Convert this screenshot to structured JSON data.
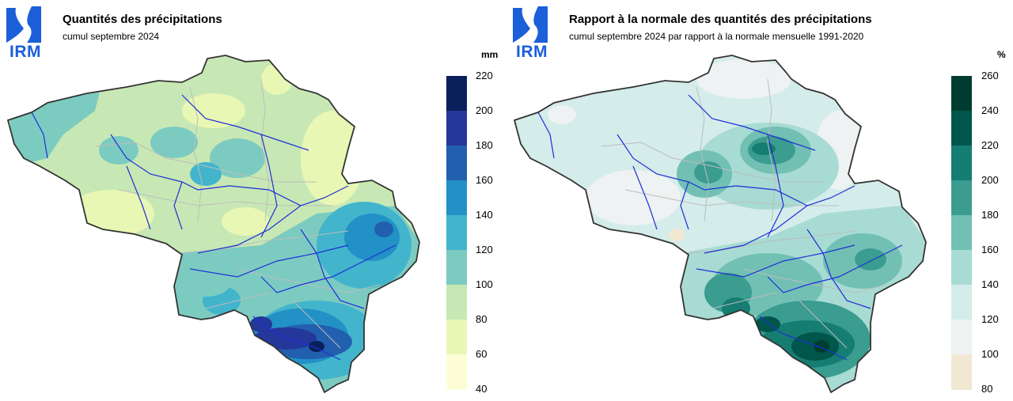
{
  "left_panel": {
    "logo": "IRM",
    "title": "Quantités des précipitations",
    "subtitle": "cumul septembre 2024",
    "legend": {
      "unit": "mm",
      "ticks": [
        "220",
        "200",
        "180",
        "160",
        "140",
        "120",
        "100",
        "80",
        "60",
        "40"
      ],
      "colors": [
        "#0b1f5c",
        "#24379a",
        "#225fae",
        "#2291c6",
        "#42b5cc",
        "#7ccbc1",
        "#c7e8b4",
        "#e9f7b4",
        "#fdfed6"
      ]
    }
  },
  "right_panel": {
    "logo": "IRM",
    "title": "Rapport à la normale des quantités des précipitations",
    "subtitle": "cumul septembre 2024 par rapport à la normale mensuelle 1991-2020",
    "legend": {
      "unit": "%",
      "ticks": [
        "260",
        "240",
        "220",
        "200",
        "180",
        "160",
        "140",
        "120",
        "100",
        "80"
      ],
      "colors": [
        "#003c30",
        "#00564a",
        "#167d72",
        "#3b9c90",
        "#72c0b4",
        "#a8dbd3",
        "#d4ecea",
        "#eef2f2",
        "#f1e8d4"
      ]
    }
  }
}
